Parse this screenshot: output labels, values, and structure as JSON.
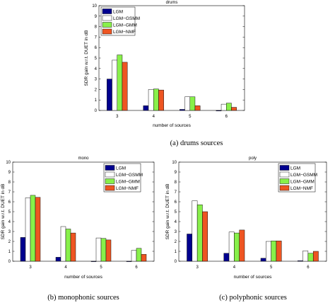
{
  "colors": {
    "LGM": "#00008f",
    "LGM-GSSMM": "#ffffff",
    "LGM-GMM": "#88f04a",
    "LGM-NMF": "#ee5522"
  },
  "chart_data": [
    {
      "type": "bar",
      "title": "drums",
      "caption": "(a)  drums sources",
      "xlabel": "number of sources",
      "ylabel": "SDR gain w.r.t. DUET in dB",
      "categories": [
        "3",
        "4",
        "5",
        "6"
      ],
      "ylim": [
        0,
        10
      ],
      "yticks": [
        "0",
        "1",
        "2",
        "3",
        "4",
        "5",
        "6",
        "7",
        "8",
        "9",
        "10"
      ],
      "legend_position": "top-left",
      "series": [
        {
          "name": "LGM",
          "values": [
            3.0,
            0.45,
            0.1,
            -0.05
          ]
        },
        {
          "name": "LGM−GSMM",
          "values": [
            4.8,
            2.0,
            1.3,
            0.6
          ]
        },
        {
          "name": "LGM−GMM",
          "values": [
            5.3,
            2.05,
            1.3,
            0.7
          ]
        },
        {
          "name": "LGM−NMF",
          "values": [
            4.6,
            1.95,
            0.45,
            0.3
          ]
        }
      ]
    },
    {
      "type": "bar",
      "title": "mono",
      "caption": "(b)  monophonic sources",
      "xlabel": "number of sources",
      "ylabel": "SDR gain w.r.t. DUET in dB",
      "categories": [
        "3",
        "4",
        "5",
        "6"
      ],
      "ylim": [
        0,
        10
      ],
      "yticks": [
        "0",
        "1",
        "2",
        "3",
        "4",
        "5",
        "6",
        "7",
        "8",
        "9",
        "10"
      ],
      "legend_position": "top-right",
      "series": [
        {
          "name": "LGM",
          "values": [
            2.4,
            0.4,
            0.0,
            0.0
          ]
        },
        {
          "name": "LGM−GSMM",
          "values": [
            6.4,
            3.5,
            2.35,
            1.1
          ]
        },
        {
          "name": "LGM−GMM",
          "values": [
            6.65,
            3.25,
            2.3,
            1.3
          ]
        },
        {
          "name": "LGM−NMF",
          "values": [
            6.45,
            2.85,
            2.15,
            0.7
          ]
        }
      ]
    },
    {
      "type": "bar",
      "title": "poly",
      "caption": "(c)  polyphonic sources",
      "xlabel": "number of sources",
      "ylabel": "SDR gain w.r.t. DUET in dB",
      "categories": [
        "3",
        "4",
        "5",
        "6"
      ],
      "ylim": [
        0,
        10
      ],
      "yticks": [
        "0",
        "1",
        "2",
        "3",
        "4",
        "5",
        "6",
        "7",
        "8",
        "9",
        "10"
      ],
      "legend_position": "top-right",
      "series": [
        {
          "name": "LGM",
          "values": [
            2.75,
            0.8,
            0.3,
            0.05
          ]
        },
        {
          "name": "LGM−GSMM",
          "values": [
            6.1,
            2.95,
            2.0,
            1.05
          ]
        },
        {
          "name": "LGM−GMM",
          "values": [
            5.7,
            2.85,
            2.05,
            0.8
          ]
        },
        {
          "name": "LGM−NMF",
          "values": [
            5.0,
            3.15,
            2.05,
            1.0
          ]
        }
      ]
    }
  ]
}
